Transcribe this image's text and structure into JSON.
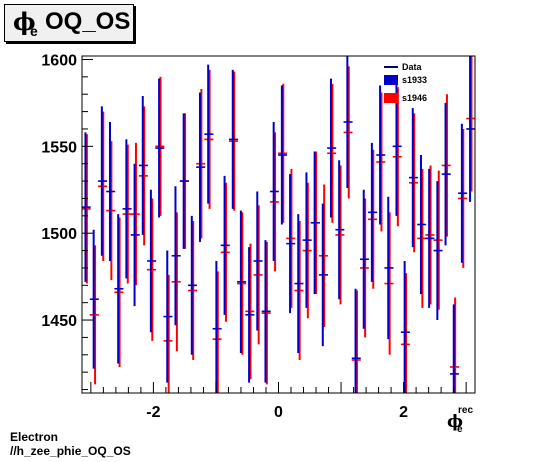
{
  "title": {
    "symbol": "ϕ",
    "subscript": "e",
    "text": "OQ_OS"
  },
  "footer": {
    "line1": "Electron",
    "line2": "//h_zee_phie_OQ_OS"
  },
  "xaxis_label": {
    "symbol": "ϕ",
    "subscript": "e",
    "superscript": "rec"
  },
  "colors": {
    "s1933": "#0000cc",
    "s1946": "#ff0000",
    "data": "#000080"
  },
  "chart_data": {
    "type": "scatter",
    "xlim": [
      -3.1416,
      3.1416
    ],
    "ylim": [
      1408,
      1602
    ],
    "xticks": [
      -2,
      0,
      2
    ],
    "yticks": [
      1450,
      1500,
      1550,
      1600
    ],
    "xtick_labels": [
      "-2",
      "0",
      "2"
    ],
    "ytick_labels": [
      "1450",
      "1500",
      "1550",
      "1600"
    ],
    "grid": false,
    "legend_position": "top-right",
    "legend": [
      "Data",
      "s1933",
      "s1946"
    ],
    "series": [
      {
        "name": "s1933",
        "x": [
          -3.075,
          -2.944,
          -2.813,
          -2.683,
          -2.552,
          -2.421,
          -2.29,
          -2.159,
          -2.029,
          -1.898,
          -1.767,
          -1.636,
          -1.505,
          -1.375,
          -1.244,
          -1.113,
          -0.982,
          -0.851,
          -0.72,
          -0.59,
          -0.459,
          -0.328,
          -0.197,
          -0.066,
          0.065,
          0.196,
          0.327,
          0.458,
          0.589,
          0.719,
          0.85,
          0.981,
          1.112,
          1.243,
          1.374,
          1.504,
          1.635,
          1.766,
          1.897,
          2.028,
          2.158,
          2.289,
          2.42,
          2.551,
          2.682,
          2.813,
          2.943,
          3.074
        ],
        "values": [
          1515,
          1462,
          1530,
          1524,
          1468,
          1514,
          1499,
          1539,
          1484,
          1549,
          1452,
          1487,
          1530,
          1470,
          1538,
          1557,
          1445,
          1493,
          1554,
          1472,
          1453,
          1484,
          1455,
          1524,
          1545,
          1494,
          1471,
          1496,
          1506,
          1476,
          1549,
          1502,
          1564,
          1428,
          1485,
          1512,
          1545,
          1480,
          1550,
          1443,
          1532,
          1505,
          1497,
          1490,
          1534,
          1419,
          1523,
          1560
        ],
        "errors": [
          43,
          40,
          43,
          40,
          43,
          40,
          41,
          40,
          41,
          40,
          38,
          40,
          39,
          40,
          43,
          40,
          39,
          40,
          40,
          41,
          39,
          40,
          41,
          40,
          40,
          40,
          40,
          39,
          41,
          41,
          40,
          40,
          38,
          40,
          40,
          40,
          40,
          41,
          40,
          41,
          40,
          40,
          40,
          40,
          41,
          40,
          40,
          42
        ]
      },
      {
        "name": "s1946",
        "x": [
          -3.075,
          -2.944,
          -2.813,
          -2.683,
          -2.552,
          -2.421,
          -2.29,
          -2.159,
          -2.029,
          -1.898,
          -1.767,
          -1.636,
          -1.505,
          -1.375,
          -1.244,
          -1.113,
          -0.982,
          -0.851,
          -0.72,
          -0.59,
          -0.459,
          -0.328,
          -0.197,
          -0.066,
          0.065,
          0.196,
          0.327,
          0.458,
          0.589,
          0.719,
          0.85,
          0.981,
          1.112,
          1.243,
          1.374,
          1.504,
          1.635,
          1.766,
          1.897,
          2.028,
          2.158,
          2.289,
          2.42,
          2.551,
          2.682,
          2.813,
          2.943,
          3.074
        ],
        "values": [
          1514,
          1453,
          1527,
          1513,
          1466,
          1511,
          1511,
          1533,
          1479,
          1550,
          1438,
          1472,
          1530,
          1467,
          1540,
          1554,
          1439,
          1489,
          1553,
          1471,
          1455,
          1476,
          1454,
          1518,
          1546,
          1497,
          1467,
          1490,
          1506,
          1487,
          1546,
          1499,
          1558,
          1427,
          1480,
          1508,
          1541,
          1471,
          1544,
          1436,
          1529,
          1497,
          1499,
          1496,
          1539,
          1423,
          1520,
          1566
        ],
        "errors": [
          43,
          40,
          43,
          40,
          43,
          40,
          41,
          40,
          41,
          40,
          38,
          40,
          39,
          40,
          43,
          40,
          39,
          40,
          40,
          41,
          39,
          40,
          41,
          40,
          40,
          40,
          40,
          39,
          41,
          41,
          40,
          40,
          38,
          40,
          40,
          40,
          40,
          41,
          40,
          41,
          40,
          40,
          40,
          40,
          41,
          40,
          40,
          42
        ]
      }
    ]
  }
}
